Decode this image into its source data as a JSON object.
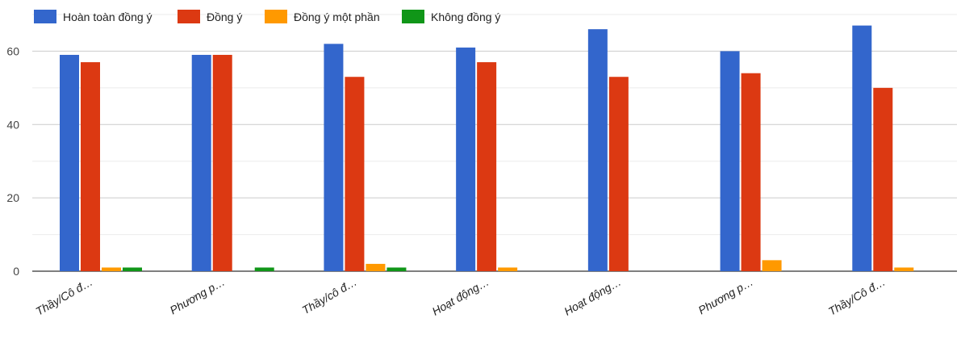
{
  "chart_data": {
    "type": "bar",
    "categories": [
      "Thầy/Cô đ…",
      "Phương p…",
      "Thầy/cô đ…",
      "Hoạt động…",
      "Hoạt động…",
      "Phương p…",
      "Thầy/Cô đ…"
    ],
    "series": [
      {
        "name": "Hoàn toàn đồng ý",
        "color": "#3366cc",
        "values": [
          59,
          59,
          62,
          61,
          66,
          60,
          67
        ]
      },
      {
        "name": "Đồng ý",
        "color": "#dc3912",
        "values": [
          57,
          59,
          53,
          57,
          53,
          54,
          50
        ]
      },
      {
        "name": "Đồng ý một phần",
        "color": "#ff9900",
        "values": [
          1,
          0,
          2,
          1,
          0,
          3,
          1
        ]
      },
      {
        "name": "Không đồng ý",
        "color": "#109618",
        "values": [
          1,
          1,
          1,
          0,
          0,
          0,
          0
        ]
      }
    ],
    "y_ticks": [
      0,
      20,
      40,
      60
    ],
    "ylim": [
      0,
      70
    ],
    "grid": true,
    "legend_position": "top-left",
    "title": "",
    "xlabel": "",
    "ylabel": ""
  }
}
